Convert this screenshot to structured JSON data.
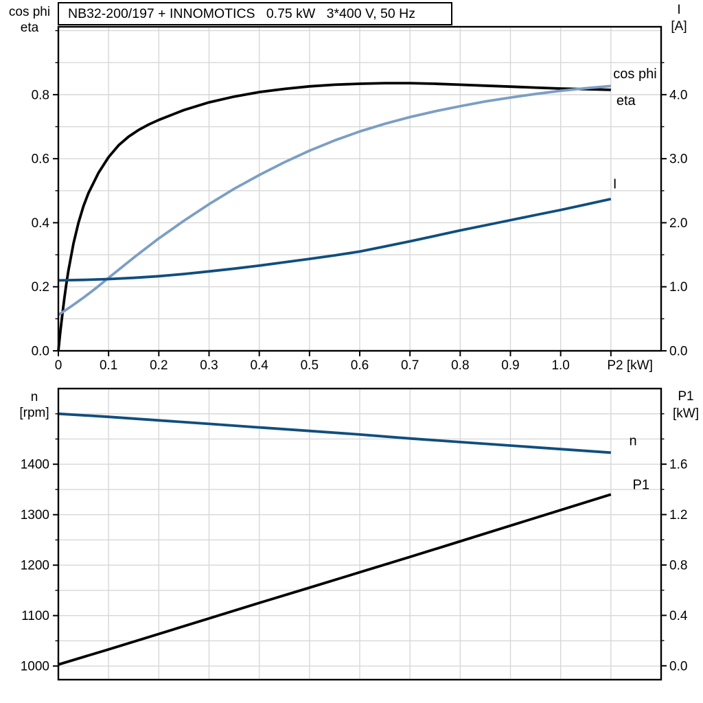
{
  "title": "NB32-200/197 + INNOMOTICS   0.75 kW   3*400 V, 50 Hz",
  "colors": {
    "black": "#000000",
    "light_blue": "#7B9EC4",
    "dark_blue": "#104E7E",
    "grid": "#D7D7D7",
    "background": "#FFFFFF"
  },
  "chart_data": [
    {
      "type": "line",
      "name": "motor-performance",
      "x_axis": {
        "label": "P2 [kW]",
        "lim": [
          0,
          1.2
        ],
        "tick_values": [
          0,
          0.1,
          0.2,
          0.3,
          0.4,
          0.5,
          0.6,
          0.7,
          0.8,
          0.9,
          1.0,
          1.1
        ],
        "tick_labels": [
          "0",
          "0.1",
          "0.2",
          "0.3",
          "0.4",
          "0.5",
          "0.6",
          "0.7",
          "0.8",
          "0.9",
          "1.0",
          ""
        ],
        "grid_values": [
          0.1,
          0.2,
          0.3,
          0.4,
          0.5,
          0.6,
          0.7,
          0.8,
          0.9,
          1.0,
          1.1
        ],
        "label_at": 1.138
      },
      "left_axis": {
        "name_lines": [
          "cos phi",
          "eta"
        ],
        "lim": [
          0,
          1.012
        ],
        "tick_values": [
          0,
          0.2,
          0.4,
          0.6,
          0.8
        ],
        "tick_labels": [
          "0.0",
          "0.2",
          "0.4",
          "0.6",
          "0.8"
        ],
        "minor_values": [
          0.1,
          0.3,
          0.5,
          0.7,
          0.9,
          1.0
        ],
        "grid_values": [
          0.1,
          0.2,
          0.3,
          0.4,
          0.5,
          0.6,
          0.7,
          0.8,
          0.9,
          1.0
        ]
      },
      "right_axis": {
        "name_lines": [
          "I",
          "[A]"
        ],
        "lim": [
          0,
          5.06
        ],
        "tick_values": [
          0,
          1,
          2,
          3,
          4
        ],
        "tick_labels": [
          "0.0",
          "1.0",
          "2.0",
          "3.0",
          "4.0"
        ],
        "minor_values": [
          0.5,
          1.5,
          2.5,
          3.5,
          4.5
        ]
      },
      "series": [
        {
          "name": "eta",
          "label": "eta",
          "axis": "left",
          "color": "black",
          "label_pos": [
            1.13,
            0.783
          ],
          "points": [
            [
              0,
              0
            ],
            [
              0.004,
              0.06
            ],
            [
              0.008,
              0.115
            ],
            [
              0.012,
              0.165
            ],
            [
              0.016,
              0.21
            ],
            [
              0.02,
              0.25
            ],
            [
              0.03,
              0.335
            ],
            [
              0.04,
              0.4
            ],
            [
              0.05,
              0.452
            ],
            [
              0.06,
              0.493
            ],
            [
              0.08,
              0.556
            ],
            [
              0.1,
              0.605
            ],
            [
              0.12,
              0.642
            ],
            [
              0.14,
              0.669
            ],
            [
              0.16,
              0.69
            ],
            [
              0.18,
              0.707
            ],
            [
              0.2,
              0.721
            ],
            [
              0.25,
              0.752
            ],
            [
              0.3,
              0.776
            ],
            [
              0.35,
              0.794
            ],
            [
              0.4,
              0.808
            ],
            [
              0.45,
              0.818
            ],
            [
              0.5,
              0.826
            ],
            [
              0.55,
              0.831
            ],
            [
              0.6,
              0.834
            ],
            [
              0.65,
              0.836
            ],
            [
              0.7,
              0.836
            ],
            [
              0.75,
              0.834
            ],
            [
              0.8,
              0.831
            ],
            [
              0.85,
              0.828
            ],
            [
              0.9,
              0.825
            ],
            [
              0.95,
              0.822
            ],
            [
              1.0,
              0.819
            ],
            [
              1.05,
              0.817
            ],
            [
              1.1,
              0.815
            ]
          ]
        },
        {
          "name": "cos phi",
          "label": "cos phi",
          "axis": "left",
          "color": "light_blue",
          "label_pos": [
            1.148,
            0.866
          ],
          "points": [
            [
              0,
              0.112
            ],
            [
              0.025,
              0.138
            ],
            [
              0.05,
              0.166
            ],
            [
              0.075,
              0.196
            ],
            [
              0.1,
              0.228
            ],
            [
              0.15,
              0.291
            ],
            [
              0.2,
              0.351
            ],
            [
              0.25,
              0.406
            ],
            [
              0.3,
              0.458
            ],
            [
              0.35,
              0.506
            ],
            [
              0.4,
              0.549
            ],
            [
              0.45,
              0.589
            ],
            [
              0.5,
              0.625
            ],
            [
              0.55,
              0.657
            ],
            [
              0.6,
              0.685
            ],
            [
              0.65,
              0.709
            ],
            [
              0.7,
              0.73
            ],
            [
              0.75,
              0.748
            ],
            [
              0.8,
              0.764
            ],
            [
              0.85,
              0.779
            ],
            [
              0.9,
              0.791
            ],
            [
              0.95,
              0.802
            ],
            [
              1.0,
              0.812
            ],
            [
              1.05,
              0.82
            ],
            [
              1.1,
              0.827
            ]
          ]
        },
        {
          "name": "I",
          "label": "I",
          "axis": "right",
          "color": "dark_blue",
          "label_pos": [
            1.108,
            2.61
          ],
          "points": [
            [
              0,
              1.1
            ],
            [
              0.05,
              1.107
            ],
            [
              0.1,
              1.12
            ],
            [
              0.15,
              1.14
            ],
            [
              0.2,
              1.165
            ],
            [
              0.25,
              1.2
            ],
            [
              0.3,
              1.24
            ],
            [
              0.35,
              1.283
            ],
            [
              0.4,
              1.33
            ],
            [
              0.45,
              1.383
            ],
            [
              0.5,
              1.435
            ],
            [
              0.55,
              1.49
            ],
            [
              0.6,
              1.55
            ],
            [
              0.65,
              1.63
            ],
            [
              0.7,
              1.71
            ],
            [
              0.75,
              1.795
            ],
            [
              0.8,
              1.88
            ],
            [
              0.85,
              1.96
            ],
            [
              0.9,
              2.04
            ],
            [
              0.95,
              2.12
            ],
            [
              1.0,
              2.2
            ],
            [
              1.05,
              2.285
            ],
            [
              1.1,
              2.37
            ]
          ]
        }
      ]
    },
    {
      "type": "line",
      "name": "speed-and-input-power",
      "x_axis": {
        "label": "",
        "lim": [
          0,
          1.2
        ],
        "tick_values": [],
        "tick_labels": [],
        "grid_values": [
          0.1,
          0.2,
          0.3,
          0.4,
          0.5,
          0.6,
          0.7,
          0.8,
          0.9,
          1.0,
          1.1
        ],
        "label_at": 1.138
      },
      "left_axis": {
        "name_lines": [
          "n",
          "[rpm]"
        ],
        "lim": [
          973,
          1550
        ],
        "tick_values": [
          1000,
          1100,
          1200,
          1300,
          1400
        ],
        "tick_labels": [
          "1000",
          "1100",
          "1200",
          "1300",
          "1400"
        ],
        "minor_values": [
          1050,
          1150,
          1250,
          1350,
          1450,
          1500
        ],
        "grid_values": [
          1000,
          1050,
          1100,
          1150,
          1200,
          1250,
          1300,
          1350,
          1400,
          1450,
          1500
        ]
      },
      "right_axis": {
        "name_lines": [
          "P1",
          "[kW]"
        ],
        "lim": [
          -0.11,
          2.2
        ],
        "tick_values": [
          0,
          0.4,
          0.8,
          1.2,
          1.6
        ],
        "tick_labels": [
          "0.0",
          "0.4",
          "0.8",
          "1.2",
          "1.6"
        ],
        "minor_values": [
          0.2,
          0.6,
          1.0,
          1.4,
          1.8,
          2.0
        ]
      },
      "series": [
        {
          "name": "n",
          "label": "n",
          "axis": "left",
          "color": "dark_blue",
          "label_pos": [
            1.144,
            1447
          ],
          "points": [
            [
              0,
              1500
            ],
            [
              0.1,
              1494
            ],
            [
              0.2,
              1487
            ],
            [
              0.3,
              1480
            ],
            [
              0.4,
              1473
            ],
            [
              0.5,
              1466
            ],
            [
              0.6,
              1459
            ],
            [
              0.7,
              1451
            ],
            [
              0.8,
              1444
            ],
            [
              0.9,
              1437
            ],
            [
              1.0,
              1430
            ],
            [
              1.1,
              1423
            ]
          ]
        },
        {
          "name": "P1",
          "label": "P1",
          "axis": "right",
          "color": "black",
          "label_pos": [
            1.16,
            1.44
          ],
          "points": [
            [
              0,
              0.01
            ],
            [
              0.1,
              0.13
            ],
            [
              0.2,
              0.253
            ],
            [
              0.3,
              0.376
            ],
            [
              0.4,
              0.499
            ],
            [
              0.5,
              0.62
            ],
            [
              0.6,
              0.742
            ],
            [
              0.7,
              0.864
            ],
            [
              0.8,
              0.988
            ],
            [
              0.9,
              1.112
            ],
            [
              1.0,
              1.236
            ],
            [
              1.1,
              1.36
            ]
          ]
        }
      ]
    }
  ]
}
